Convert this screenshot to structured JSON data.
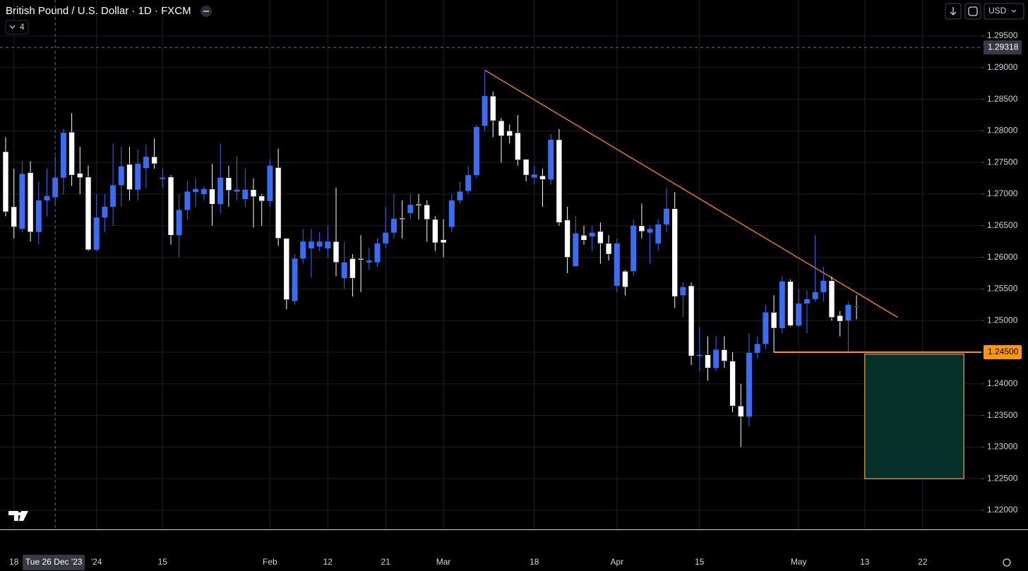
{
  "chart_data": {
    "type": "candlestick",
    "title": "British Pound / U.S. Dollar · 1D · FXCM",
    "indicator_count": "4",
    "currency": "USD",
    "ylim": [
      1.21699,
      1.30069
    ],
    "yticks": [
      {
        "value": 1.295,
        "label": "1.29500"
      },
      {
        "value": 1.29,
        "label": "1.29000"
      },
      {
        "value": 1.285,
        "label": "1.28500"
      },
      {
        "value": 1.28,
        "label": "1.28000"
      },
      {
        "value": 1.275,
        "label": "1.27500"
      },
      {
        "value": 1.27,
        "label": "1.27000"
      },
      {
        "value": 1.265,
        "label": "1.26500"
      },
      {
        "value": 1.26,
        "label": "1.26000"
      },
      {
        "value": 1.255,
        "label": "1.25500"
      },
      {
        "value": 1.25,
        "label": "1.25000"
      },
      {
        "value": 1.245,
        "label": "1.24500"
      },
      {
        "value": 1.24,
        "label": "1.24000"
      },
      {
        "value": 1.235,
        "label": "1.23500"
      },
      {
        "value": 1.23,
        "label": "1.23000"
      },
      {
        "value": 1.225,
        "label": "1.22500"
      },
      {
        "value": 1.22,
        "label": "1.22000"
      }
    ],
    "grid": true,
    "up_color": "#3a6cf4",
    "down_color": "#ffffff",
    "categories": [
      null,
      "18",
      null,
      null,
      null,
      null,
      null,
      null,
      null,
      null,
      null,
      "'24",
      null,
      null,
      null,
      null,
      null,
      null,
      null,
      "15",
      null,
      null,
      null,
      null,
      null,
      null,
      null,
      null,
      null,
      null,
      null,
      null,
      "Feb",
      null,
      null,
      null,
      null,
      null,
      null,
      "12",
      null,
      null,
      null,
      null,
      null,
      null,
      "21",
      null,
      null,
      null,
      null,
      null,
      null,
      "Mar",
      null,
      null,
      null,
      null,
      null,
      null,
      null,
      null,
      null,
      null,
      "18",
      null,
      null,
      null,
      null,
      null,
      null,
      null,
      null,
      null,
      "Apr",
      null,
      null,
      null,
      null,
      null,
      null,
      null,
      null,
      null,
      "15",
      null,
      null,
      null,
      null,
      null,
      null,
      null,
      null,
      null,
      null,
      null,
      "May",
      null,
      null,
      null,
      null,
      null,
      null,
      null,
      "13",
      null,
      null,
      null,
      null,
      null,
      null,
      "22"
    ],
    "ohlc": [
      [
        1.2767,
        1.279,
        1.2665,
        1.2672
      ],
      [
        1.268,
        1.274,
        1.263,
        1.2648
      ],
      [
        1.2645,
        1.2752,
        1.264,
        1.2732
      ],
      [
        1.2734,
        1.2752,
        1.2625,
        1.264
      ],
      [
        1.264,
        1.272,
        1.262,
        1.269
      ],
      [
        1.269,
        1.274,
        1.2665,
        1.2697
      ],
      [
        1.2695,
        1.276,
        1.2682,
        1.2726
      ],
      [
        1.2726,
        1.2803,
        1.27,
        1.2797
      ],
      [
        1.2798,
        1.2828,
        1.2713,
        1.273
      ],
      [
        1.2733,
        1.2775,
        1.27,
        1.2726
      ],
      [
        1.2727,
        1.2745,
        1.261,
        1.2612
      ],
      [
        1.2612,
        1.27,
        1.261,
        1.2663
      ],
      [
        1.2663,
        1.27,
        1.264,
        1.268
      ],
      [
        1.268,
        1.278,
        1.265,
        1.2714
      ],
      [
        1.2714,
        1.2775,
        1.268,
        1.2744
      ],
      [
        1.2747,
        1.2775,
        1.269,
        1.2707
      ],
      [
        1.2707,
        1.277,
        1.269,
        1.2748
      ],
      [
        1.2741,
        1.2778,
        1.271,
        1.2759
      ],
      [
        1.2759,
        1.2788,
        1.274,
        1.2748
      ],
      [
        1.2724,
        1.274,
        1.271,
        1.2726
      ],
      [
        1.2727,
        1.273,
        1.262,
        1.2635
      ],
      [
        1.2635,
        1.27,
        1.26,
        1.2675
      ],
      [
        1.2675,
        1.272,
        1.266,
        1.2704
      ],
      [
        1.2703,
        1.2725,
        1.268,
        1.2708
      ],
      [
        1.27,
        1.2712,
        1.269,
        1.2708
      ],
      [
        1.2708,
        1.2748,
        1.265,
        1.2684
      ],
      [
        1.2684,
        1.278,
        1.267,
        1.2726
      ],
      [
        1.2726,
        1.2745,
        1.268,
        1.2706
      ],
      [
        1.2704,
        1.276,
        1.269,
        1.2707
      ],
      [
        1.2692,
        1.274,
        1.268,
        1.2707
      ],
      [
        1.2707,
        1.2725,
        1.2647,
        1.2696
      ],
      [
        1.2697,
        1.27,
        1.265,
        1.2689
      ],
      [
        1.2689,
        1.2755,
        1.268,
        1.2745
      ],
      [
        1.2742,
        1.2772,
        1.2618,
        1.263
      ],
      [
        1.263,
        1.263,
        1.2518,
        1.2533
      ],
      [
        1.2531,
        1.2605,
        1.2525,
        1.2598
      ],
      [
        1.2598,
        1.2645,
        1.259,
        1.2625
      ],
      [
        1.2614,
        1.2645,
        1.2568,
        1.2625
      ],
      [
        1.2617,
        1.264,
        1.261,
        1.2625
      ],
      [
        1.2614,
        1.265,
        1.26,
        1.2625
      ],
      [
        1.2625,
        1.271,
        1.257,
        1.2592
      ],
      [
        1.2567,
        1.2625,
        1.255,
        1.2592
      ],
      [
        1.2598,
        1.2605,
        1.2538,
        1.2567
      ],
      [
        1.2598,
        1.2635,
        1.2545,
        1.2596
      ],
      [
        1.2592,
        1.2615,
        1.258,
        1.2595
      ],
      [
        1.2592,
        1.263,
        1.2585,
        1.2622
      ],
      [
        1.2622,
        1.268,
        1.2615,
        1.2639
      ],
      [
        1.2639,
        1.27,
        1.263,
        1.2661
      ],
      [
        1.2662,
        1.269,
        1.263,
        1.266
      ],
      [
        1.267,
        1.27,
        1.266,
        1.2683
      ],
      [
        1.2684,
        1.27,
        1.266,
        1.2682
      ],
      [
        1.2683,
        1.269,
        1.2625,
        1.266
      ],
      [
        1.266,
        1.2665,
        1.261,
        1.2623
      ],
      [
        1.2628,
        1.266,
        1.26,
        1.2623
      ],
      [
        1.2648,
        1.27,
        1.264,
        1.269
      ],
      [
        1.269,
        1.272,
        1.2685,
        1.2704
      ],
      [
        1.2705,
        1.2745,
        1.27,
        1.273
      ],
      [
        1.273,
        1.281,
        1.2725,
        1.2806
      ],
      [
        1.2808,
        1.2895,
        1.28,
        1.2855
      ],
      [
        1.2855,
        1.2862,
        1.279,
        1.2816
      ],
      [
        1.2816,
        1.282,
        1.275,
        1.2792
      ],
      [
        1.28,
        1.281,
        1.278,
        1.2792
      ],
      [
        1.2797,
        1.2825,
        1.2745,
        1.2754
      ],
      [
        1.2755,
        1.2755,
        1.272,
        1.273
      ],
      [
        1.2726,
        1.2745,
        1.2715,
        1.2731
      ],
      [
        1.2729,
        1.274,
        1.268,
        1.2723
      ],
      [
        1.2723,
        1.2795,
        1.2715,
        1.2786
      ],
      [
        1.2786,
        1.2803,
        1.265,
        1.2655
      ],
      [
        1.2659,
        1.268,
        1.2575,
        1.26
      ],
      [
        1.2586,
        1.2665,
        1.2586,
        1.2638
      ],
      [
        1.2635,
        1.265,
        1.262,
        1.2627
      ],
      [
        1.2633,
        1.265,
        1.261,
        1.2639
      ],
      [
        1.2641,
        1.2655,
        1.259,
        1.2622
      ],
      [
        1.2622,
        1.2635,
        1.2595,
        1.2605
      ],
      [
        1.2555,
        1.263,
        1.2545,
        1.2622
      ],
      [
        1.2578,
        1.258,
        1.254,
        1.2553
      ],
      [
        1.2578,
        1.266,
        1.257,
        1.265
      ],
      [
        1.265,
        1.2685,
        1.263,
        1.2641
      ],
      [
        1.2639,
        1.265,
        1.259,
        1.2645
      ],
      [
        1.2622,
        1.266,
        1.261,
        1.2652
      ],
      [
        1.2652,
        1.271,
        1.264,
        1.2677
      ],
      [
        1.2677,
        1.2703,
        1.252,
        1.2538
      ],
      [
        1.254,
        1.256,
        1.2505,
        1.2553
      ],
      [
        1.2555,
        1.256,
        1.243,
        1.2444
      ],
      [
        1.2444,
        1.249,
        1.242,
        1.2446
      ],
      [
        1.2446,
        1.2475,
        1.2405,
        1.2425
      ],
      [
        1.2425,
        1.2475,
        1.242,
        1.2454
      ],
      [
        1.2454,
        1.2475,
        1.2425,
        1.2436
      ],
      [
        1.2436,
        1.245,
        1.2355,
        1.2365
      ],
      [
        1.2365,
        1.24,
        1.23,
        1.2348
      ],
      [
        1.2348,
        1.248,
        1.2333,
        1.2449
      ],
      [
        1.2449,
        1.2475,
        1.244,
        1.2463
      ],
      [
        1.2463,
        1.2525,
        1.2455,
        1.2513
      ],
      [
        1.2513,
        1.254,
        1.245,
        1.2488
      ],
      [
        1.2488,
        1.257,
        1.248,
        1.2562
      ],
      [
        1.2562,
        1.2565,
        1.249,
        1.2492
      ],
      [
        1.2492,
        1.255,
        1.249,
        1.2527
      ],
      [
        1.2527,
        1.2548,
        1.248,
        1.2534
      ],
      [
        1.2534,
        1.2635,
        1.253,
        1.2545
      ],
      [
        1.2545,
        1.2585,
        1.253,
        1.2563
      ],
      [
        1.2563,
        1.257,
        1.25,
        1.2505
      ],
      [
        1.2508,
        1.2515,
        1.2475,
        1.2499
      ],
      [
        1.25,
        1.253,
        1.245,
        1.2525
      ],
      [
        1.2523,
        1.254,
        1.2502,
        1.2522
      ],
      null,
      null,
      null,
      null,
      null,
      null,
      null,
      null
    ],
    "trendline": {
      "points": [
        [
          58,
          1.2896
        ],
        [
          108,
          1.2505
        ]
      ],
      "color": "#f07a2c"
    },
    "horizontal_line": {
      "price": {
        "value": 1.245,
        "label": "1.24500"
      },
      "start": 93,
      "color": "#ff9800"
    },
    "rectangle": {
      "start": 104,
      "end": 116,
      "top": 1.2447,
      "bottom": 1.225,
      "fill": "#06302a",
      "border": "#f5a33a"
    },
    "crosshair": {
      "index": 6,
      "date_label": "Tue 26 Dec '23",
      "price": 1.29318
    }
  }
}
